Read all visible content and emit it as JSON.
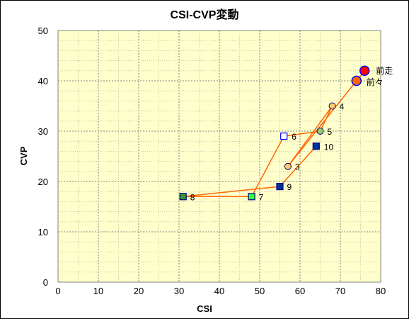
{
  "chart_data": {
    "type": "scatter",
    "title": "CSI-CVP変動",
    "xlabel": "CSI",
    "ylabel": "CVP",
    "xlim": [
      0,
      80
    ],
    "ylim": [
      0,
      50
    ],
    "x_ticks": [
      "0",
      "10",
      "20",
      "30",
      "40",
      "50",
      "60",
      "70",
      "80"
    ],
    "y_ticks": [
      "0",
      "10",
      "20",
      "30",
      "40",
      "50"
    ],
    "grid": true,
    "plot_background": "#ffffcc",
    "line_color": "#ff6600",
    "points": [
      {
        "label": "前走",
        "x": 76,
        "y": 42,
        "shape": "circle",
        "fill": "#ff0000",
        "stroke": "#0000ff",
        "big": true
      },
      {
        "label": "前々",
        "x": 74,
        "y": 40,
        "shape": "circle",
        "fill": "#ff6600",
        "stroke": "#0000ff",
        "big": true
      },
      {
        "label": "3",
        "x": 57,
        "y": 23,
        "shape": "circle",
        "fill": "#ffcc66",
        "stroke": "#000080"
      },
      {
        "label": "4",
        "x": 68,
        "y": 35,
        "shape": "circle",
        "fill": "#ffcc66",
        "stroke": "#000080"
      },
      {
        "label": "5",
        "x": 65,
        "y": 30,
        "shape": "circle",
        "fill": "#99cc66",
        "stroke": "#000080"
      },
      {
        "label": "6",
        "x": 56,
        "y": 29,
        "shape": "square",
        "fill": "#ffffff",
        "stroke": "#0000ff"
      },
      {
        "label": "7",
        "x": 48,
        "y": 17,
        "shape": "square",
        "fill": "#33ff33",
        "stroke": "#000080"
      },
      {
        "label": "8",
        "x": 31,
        "y": 17,
        "shape": "square",
        "fill": "#339933",
        "stroke": "#000080"
      },
      {
        "label": "9",
        "x": 55,
        "y": 19,
        "shape": "square",
        "fill": "#003399",
        "stroke": "#000080"
      },
      {
        "label": "10",
        "x": 64,
        "y": 27,
        "shape": "square",
        "fill": "#003399",
        "stroke": "#000080"
      }
    ]
  }
}
